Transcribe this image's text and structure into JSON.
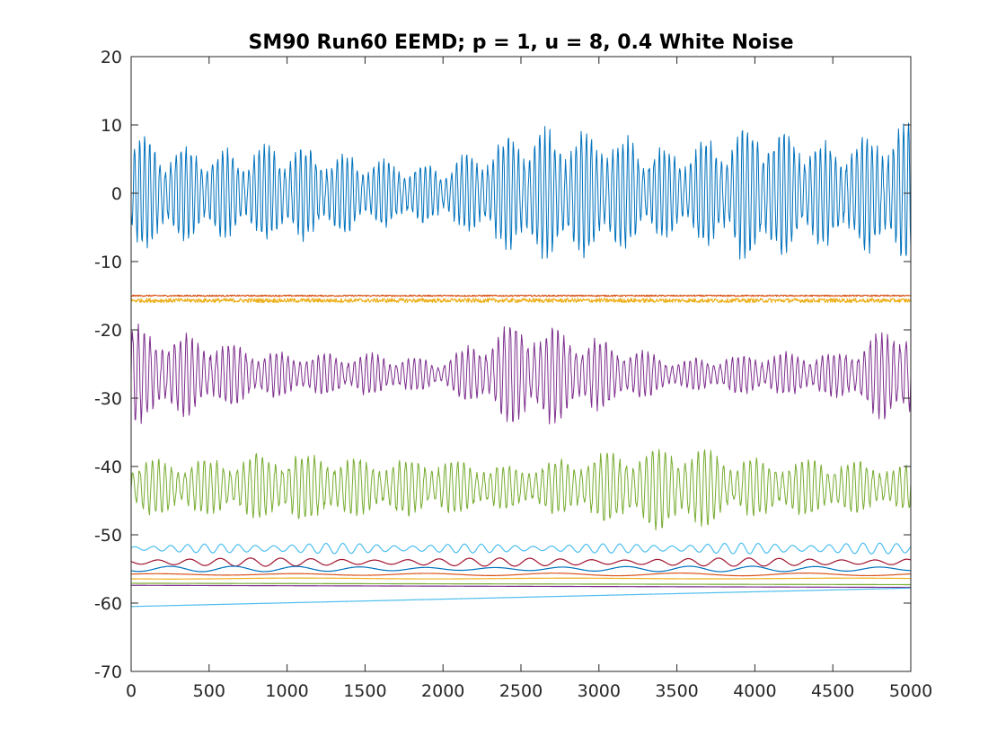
{
  "chart_data": {
    "type": "line",
    "title": "SM90 Run60 EEMD; p = 1, u = 8, 0.4 White Noise",
    "xlabel": "",
    "ylabel": "",
    "xlim": [
      0,
      5000
    ],
    "ylim": [
      -70,
      20
    ],
    "xticks": [
      0,
      500,
      1000,
      1500,
      2000,
      2500,
      3000,
      3500,
      4000,
      4500,
      5000
    ],
    "yticks": [
      20,
      10,
      0,
      -10,
      -20,
      -30,
      -40,
      -50,
      -60,
      -70
    ],
    "xtick_labels": [
      "0",
      "500",
      "1000",
      "1500",
      "2000",
      "2500",
      "3000",
      "3500",
      "4000",
      "4500",
      "5000"
    ],
    "ytick_labels": [
      "20",
      "10",
      "0",
      "-10",
      "-20",
      "-30",
      "-40",
      "-50",
      "-60",
      "-70"
    ],
    "grid": false,
    "legend": "none",
    "series": [
      {
        "color": "#0072BD",
        "offset": 0,
        "envelope": [
          [
            0,
            8
          ],
          [
            500,
            6
          ],
          [
            1000,
            7
          ],
          [
            1500,
            5
          ],
          [
            2000,
            4
          ],
          [
            2500,
            9
          ],
          [
            3000,
            9
          ],
          [
            3500,
            6
          ],
          [
            4000,
            10
          ],
          [
            4500,
            7
          ],
          [
            5000,
            10
          ]
        ],
        "cycles": 150
      },
      {
        "color": "#D95319",
        "offset": -15.0,
        "envelope": [
          [
            0,
            0.1
          ],
          [
            5000,
            0.1
          ]
        ],
        "cycles": 2500
      },
      {
        "color": "#EDB120",
        "offset": -15.7,
        "envelope": [
          [
            0,
            0.3
          ],
          [
            5000,
            0.3
          ]
        ],
        "cycles": 2500
      },
      {
        "color": "#7E2F8E",
        "offset": -26.5,
        "envelope": [
          [
            0,
            7
          ],
          [
            500,
            5
          ],
          [
            1000,
            3
          ],
          [
            1500,
            3
          ],
          [
            2000,
            2
          ],
          [
            2500,
            8
          ],
          [
            3000,
            5
          ],
          [
            3500,
            2
          ],
          [
            4000,
            3
          ],
          [
            4500,
            3
          ],
          [
            5000,
            8
          ]
        ],
        "cycles": 130
      },
      {
        "color": "#77AC30",
        "offset": -43.0,
        "envelope": [
          [
            0,
            4
          ],
          [
            500,
            4
          ],
          [
            1000,
            5
          ],
          [
            1500,
            4
          ],
          [
            2000,
            4
          ],
          [
            2500,
            3
          ],
          [
            3000,
            5
          ],
          [
            3500,
            6
          ],
          [
            4000,
            4
          ],
          [
            4500,
            4
          ],
          [
            5000,
            3
          ]
        ],
        "cycles": 120
      },
      {
        "color": "#4DBEEE",
        "offset": -52.0,
        "envelope": [
          [
            0,
            0.5
          ],
          [
            1000,
            0.8
          ],
          [
            2500,
            0.6
          ],
          [
            4000,
            0.8
          ],
          [
            5000,
            0.8
          ]
        ],
        "cycles": 45
      },
      {
        "color": "#A2142F",
        "offset": -54.0,
        "envelope": [
          [
            0,
            0.6
          ],
          [
            5000,
            0.6
          ]
        ],
        "cycles": 25
      },
      {
        "color": "#0072BD",
        "offset": -55.0,
        "envelope": [
          [
            0,
            0.4
          ],
          [
            5000,
            0.4
          ]
        ],
        "cycles": 12
      },
      {
        "color": "#D95319",
        "offset": -55.8,
        "envelope": [
          [
            0,
            0.2
          ],
          [
            5000,
            0.2
          ]
        ],
        "cycles": 6
      },
      {
        "color": "#EDB120",
        "offset": -56.4,
        "envelope": [
          [
            0,
            0.1
          ],
          [
            5000,
            0.1
          ]
        ],
        "cycles": 3
      },
      {
        "color": "#7E2F8E",
        "offset": -57.5,
        "envelope": [
          [
            0,
            0.0
          ],
          [
            5000,
            0.0
          ]
        ],
        "cycles": 1,
        "trend": [
          [
            0,
            -57.4
          ],
          [
            5000,
            -57.7
          ]
        ]
      },
      {
        "color": "#77AC30",
        "offset": -57.0,
        "envelope": [
          [
            0,
            0.0
          ],
          [
            5000,
            0.0
          ]
        ],
        "cycles": 1,
        "trend": [
          [
            0,
            -57.1
          ],
          [
            5000,
            -57.3
          ]
        ]
      },
      {
        "color": "#4DBEEE",
        "offset": -60.3,
        "envelope": [
          [
            0,
            0.0
          ],
          [
            5000,
            0.0
          ]
        ],
        "cycles": 1,
        "trend": [
          [
            0,
            -60.5
          ],
          [
            5000,
            -57.8
          ]
        ]
      }
    ]
  }
}
